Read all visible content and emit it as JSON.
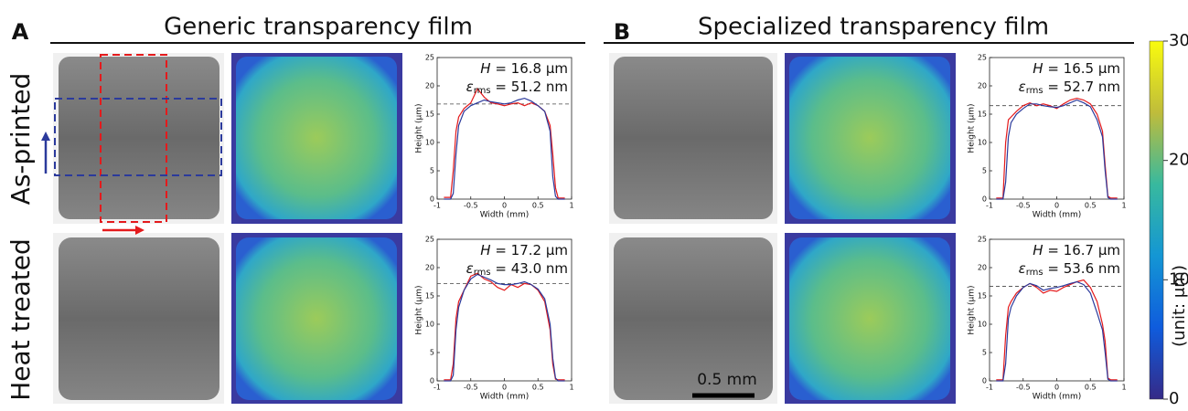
{
  "panels": [
    {
      "letter": "A",
      "title": "Generic transparency film"
    },
    {
      "letter": "B",
      "title": "Specialized transparency film"
    }
  ],
  "row_labels": [
    "As-printed",
    "Heat treated"
  ],
  "scale_bar": "0.5 mm",
  "colorbar": {
    "ticks": [
      0,
      10,
      20,
      30
    ],
    "lim": [
      0,
      30
    ],
    "label": "(unit: μm)"
  },
  "chart_data": [
    {
      "type": "line",
      "xlabel": "Width (mm)",
      "ylabel": "Height (μm)",
      "xlim": [
        -1,
        1
      ],
      "ylim": [
        0,
        25
      ],
      "xticks": [
        -1,
        -0.5,
        0,
        0.5,
        1
      ],
      "yticks": [
        0,
        5,
        10,
        15,
        20,
        25
      ],
      "reference_line": 16.8,
      "annotations": [
        {
          "symbol": "H",
          "text": " = 16.8 μm"
        },
        {
          "symbol": "ε",
          "subscript": "rms",
          "text": " = 51.2 nm"
        }
      ],
      "x": [
        -0.9,
        -0.8,
        -0.76,
        -0.72,
        -0.68,
        -0.6,
        -0.5,
        -0.4,
        -0.3,
        -0.2,
        -0.1,
        0,
        0.1,
        0.2,
        0.3,
        0.4,
        0.5,
        0.6,
        0.68,
        0.72,
        0.76,
        0.8,
        0.9
      ],
      "series": [
        {
          "color": "#e41a1c",
          "values": [
            0.3,
            0.3,
            5,
            12,
            14.5,
            16,
            17,
            19.5,
            18,
            17,
            16.8,
            16.5,
            16.8,
            17,
            16.5,
            17,
            16.5,
            15.5,
            13,
            8,
            2,
            0.2,
            0.2
          ]
        },
        {
          "color": "#2b3a9c",
          "values": [
            0,
            0,
            1,
            8,
            13,
            15.5,
            16.5,
            17,
            17.5,
            17.2,
            17,
            16.8,
            17,
            17.5,
            17.8,
            17.3,
            16.5,
            15.5,
            12,
            4,
            0.5,
            0,
            0
          ]
        }
      ]
    },
    {
      "type": "line",
      "xlabel": "Width (mm)",
      "ylabel": "Height (μm)",
      "xlim": [
        -1,
        1
      ],
      "ylim": [
        0,
        25
      ],
      "xticks": [
        -1,
        -0.5,
        0,
        0.5,
        1
      ],
      "yticks": [
        0,
        5,
        10,
        15,
        20,
        25
      ],
      "reference_line": 17.2,
      "annotations": [
        {
          "symbol": "H",
          "text": " = 17.2 μm"
        },
        {
          "symbol": "ε",
          "subscript": "rms",
          "text": " = 43.0 nm"
        }
      ],
      "x": [
        -0.9,
        -0.8,
        -0.76,
        -0.72,
        -0.68,
        -0.6,
        -0.5,
        -0.4,
        -0.3,
        -0.2,
        -0.1,
        0,
        0.1,
        0.2,
        0.3,
        0.4,
        0.5,
        0.6,
        0.68,
        0.72,
        0.76,
        0.8,
        0.9
      ],
      "series": [
        {
          "color": "#e41a1c",
          "values": [
            0.2,
            0.2,
            3,
            11,
            14,
            16,
            18.5,
            19,
            18,
            17.5,
            16.5,
            16,
            17,
            16.5,
            17.2,
            17,
            16,
            14,
            9,
            3,
            0.3,
            0.2,
            0.2
          ]
        },
        {
          "color": "#2b3a9c",
          "values": [
            0,
            0,
            1,
            9,
            13,
            16,
            18,
            18.8,
            18.3,
            17.8,
            17.2,
            17,
            17,
            17.2,
            17.5,
            17,
            16.2,
            14.5,
            10,
            4,
            0.5,
            0,
            0
          ]
        }
      ]
    },
    {
      "type": "line",
      "xlabel": "Width (mm)",
      "ylabel": "Height (μm)",
      "xlim": [
        -1,
        1
      ],
      "ylim": [
        0,
        25
      ],
      "xticks": [
        -1,
        -0.5,
        0,
        0.5,
        1
      ],
      "yticks": [
        0,
        5,
        10,
        15,
        20,
        25
      ],
      "reference_line": 16.5,
      "annotations": [
        {
          "symbol": "H",
          "text": " = 16.5 μm"
        },
        {
          "symbol": "ε",
          "subscript": "rms",
          "text": " = 52.7 nm"
        }
      ],
      "x": [
        -0.9,
        -0.8,
        -0.76,
        -0.72,
        -0.68,
        -0.6,
        -0.5,
        -0.4,
        -0.3,
        -0.2,
        -0.1,
        0,
        0.1,
        0.2,
        0.3,
        0.4,
        0.5,
        0.6,
        0.68,
        0.72,
        0.76,
        0.8,
        0.9
      ],
      "series": [
        {
          "color": "#e41a1c",
          "values": [
            0.2,
            0.2,
            10,
            14,
            14.5,
            15.5,
            16.5,
            17,
            16.5,
            16.8,
            16.5,
            16,
            16.8,
            17.5,
            17.8,
            17.5,
            16.8,
            15,
            12,
            6,
            0.5,
            0.2,
            0.2
          ]
        },
        {
          "color": "#2b3a9c",
          "values": [
            0,
            0,
            3,
            11,
            13.5,
            15,
            16,
            16.8,
            16.8,
            16.5,
            16.3,
            16.2,
            16.5,
            17,
            17.5,
            17,
            16.3,
            14,
            11,
            5,
            0.3,
            0,
            0
          ]
        }
      ]
    },
    {
      "type": "line",
      "xlabel": "Width (mm)",
      "ylabel": "Height (μm)",
      "xlim": [
        -1,
        1
      ],
      "ylim": [
        0,
        25
      ],
      "xticks": [
        -1,
        -0.5,
        0,
        0.5,
        1
      ],
      "yticks": [
        0,
        5,
        10,
        15,
        20,
        25
      ],
      "reference_line": 16.7,
      "annotations": [
        {
          "symbol": "H",
          "text": " = 16.7 μm"
        },
        {
          "symbol": "ε",
          "subscript": "rms",
          "text": " = 53.6 nm"
        }
      ],
      "x": [
        -0.9,
        -0.8,
        -0.76,
        -0.72,
        -0.68,
        -0.6,
        -0.5,
        -0.4,
        -0.3,
        -0.2,
        -0.1,
        0,
        0.1,
        0.2,
        0.3,
        0.4,
        0.5,
        0.6,
        0.68,
        0.72,
        0.76,
        0.8,
        0.9
      ],
      "series": [
        {
          "color": "#e41a1c",
          "values": [
            0.2,
            0.2,
            8,
            13,
            14,
            15.5,
            16.5,
            17.2,
            16.5,
            15.5,
            16,
            15.8,
            16.5,
            17,
            17.5,
            17.8,
            16.5,
            14,
            10,
            7,
            0.5,
            0.2,
            0.2
          ]
        },
        {
          "color": "#2b3a9c",
          "values": [
            0,
            0,
            3,
            11,
            13,
            15,
            16.5,
            17.2,
            16.8,
            16,
            16.3,
            16.5,
            16.8,
            17.2,
            17.5,
            17,
            15.5,
            12,
            9,
            5,
            0.3,
            0,
            0
          ]
        }
      ]
    }
  ]
}
